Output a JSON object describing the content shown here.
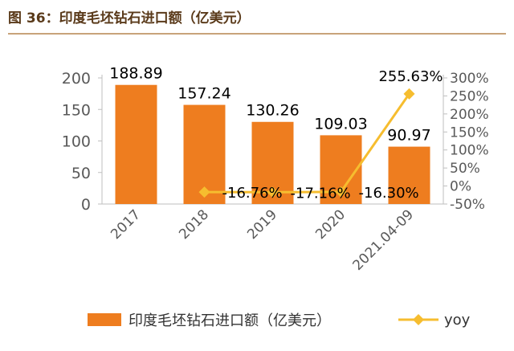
{
  "title": "图 36：印度毛坯钻石进口额（亿美元）",
  "colors": {
    "bar": "#ee7d1f",
    "line": "#f6bd2f",
    "title_rule": "#c8a37a",
    "axis": "#bfbfbf",
    "text": "#595959"
  },
  "chart_data": {
    "type": "bar",
    "categories": [
      "2017",
      "2018",
      "2019",
      "2020",
      "2021.04-09"
    ],
    "series": [
      {
        "name": "印度毛坯钻石进口额（亿美元）",
        "type": "bar",
        "axis": "left",
        "values": [
          188.89,
          157.24,
          130.26,
          109.03,
          90.97
        ],
        "labels": [
          "188.89",
          "157.24",
          "130.26",
          "109.03",
          "90.97"
        ]
      },
      {
        "name": "yoy",
        "type": "line",
        "axis": "right",
        "values": [
          null,
          -16.76,
          -17.16,
          -16.3,
          255.63
        ],
        "labels": [
          "",
          "-16.76%",
          "-17.16%",
          "-16.30%",
          "255.63%"
        ]
      }
    ],
    "y_left": {
      "ylim": [
        0,
        200
      ],
      "ticks": [
        "0",
        "50",
        "100",
        "150",
        "200"
      ],
      "tick_values": [
        0,
        50,
        100,
        150,
        200
      ]
    },
    "y_right": {
      "ylim": [
        -50,
        300
      ],
      "ticks": [
        "-50%",
        "0%",
        "50%",
        "100%",
        "150%",
        "200%",
        "250%",
        "300%"
      ],
      "tick_values": [
        -50,
        0,
        50,
        100,
        150,
        200,
        250,
        300
      ]
    },
    "grid": false,
    "legend_placement": "bottom"
  }
}
